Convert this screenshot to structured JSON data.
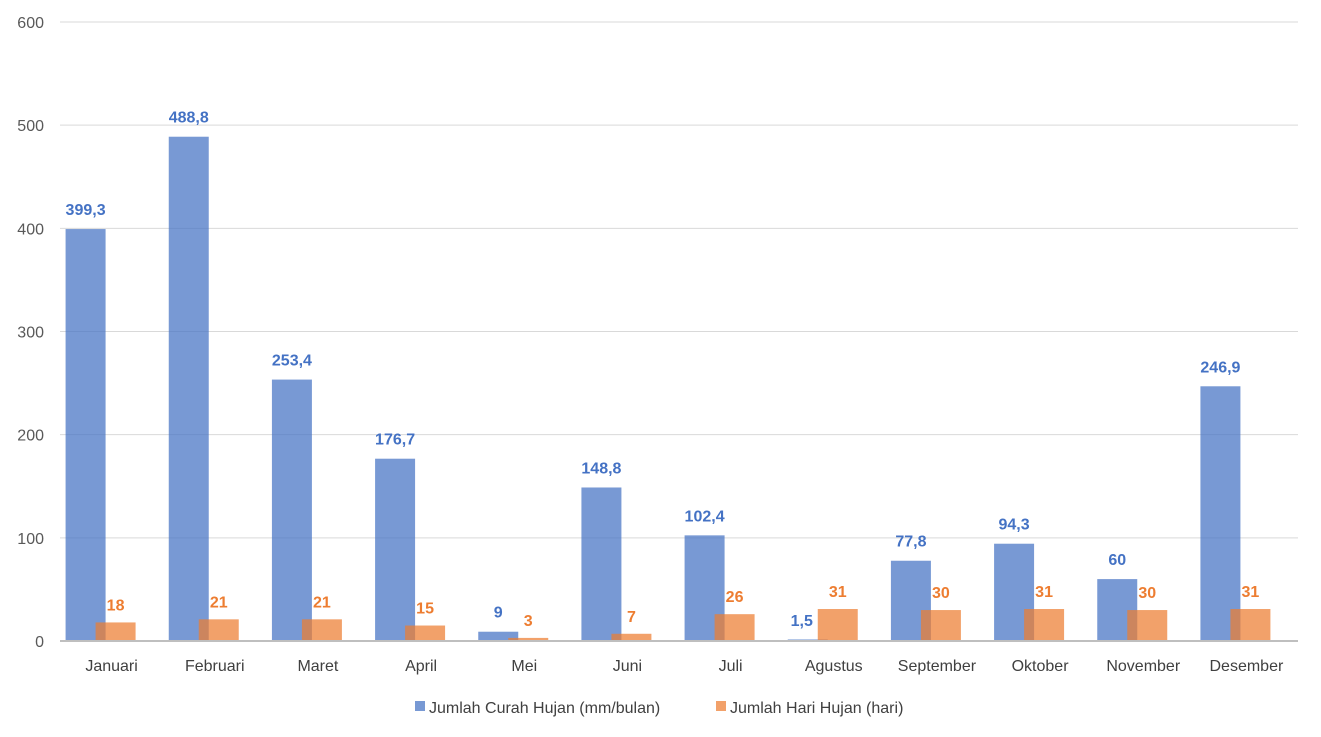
{
  "chart_data": {
    "type": "bar",
    "categories": [
      "Januari",
      "Februari",
      "Maret",
      "April",
      "Mei",
      "Juni",
      "Juli",
      "Agustus",
      "September",
      "Oktober",
      "November",
      "Desember"
    ],
    "series": [
      {
        "name": "Jumlah Curah Hujan (mm/bulan)",
        "color": "#4472C4",
        "values": [
          399.3,
          488.8,
          253.4,
          176.7,
          9,
          148.8,
          102.4,
          1.5,
          77.8,
          94.3,
          60,
          246.9
        ],
        "labels": [
          "399,3",
          "488,8",
          "253,4",
          "176,7",
          "9",
          "148,8",
          "102,4",
          "1,5",
          "77,8",
          "94,3",
          "60",
          "246,9"
        ]
      },
      {
        "name": "Jumlah Hari Hujan (hari)",
        "color": "#ED7D31",
        "values": [
          18,
          21,
          21,
          15,
          3,
          7,
          26,
          31,
          30,
          31,
          30,
          31
        ],
        "labels": [
          "18",
          "21",
          "21",
          "15",
          "3",
          "7",
          "26",
          "31",
          "30",
          "31",
          "30",
          "31"
        ]
      }
    ],
    "y_ticks": [
      "0",
      "100",
      "200",
      "300",
      "400",
      "500",
      "600"
    ],
    "ylim": [
      0,
      600
    ],
    "grid": true,
    "legend_position": "bottom"
  }
}
